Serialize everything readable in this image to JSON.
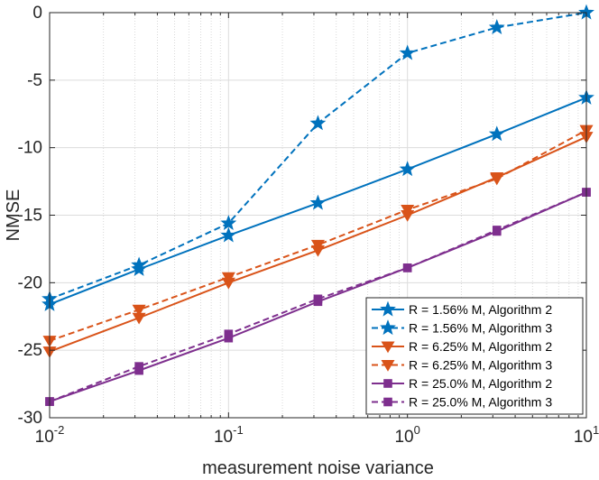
{
  "chart_data": {
    "type": "line",
    "title": "",
    "xlabel": "measurement noise variance",
    "ylabel": "NMSE",
    "xscale": "log",
    "xlim": [
      0.01,
      10
    ],
    "ylim": [
      -30,
      0
    ],
    "grid": true,
    "legend_position": "bottom-right",
    "x": [
      0.01,
      0.0316,
      0.1,
      0.316,
      1,
      3.16,
      10
    ],
    "x_ticks": [
      {
        "value": 0.01,
        "base": "10",
        "exp": "-2"
      },
      {
        "value": 0.1,
        "base": "10",
        "exp": "-1"
      },
      {
        "value": 1,
        "base": "10",
        "exp": "0"
      },
      {
        "value": 10,
        "base": "10",
        "exp": "1"
      }
    ],
    "y_ticks": [
      {
        "value": 0,
        "label": "0"
      },
      {
        "value": -5,
        "label": "-5"
      },
      {
        "value": -10,
        "label": "-10"
      },
      {
        "value": -15,
        "label": "-15"
      },
      {
        "value": -20,
        "label": "-20"
      },
      {
        "value": -25,
        "label": "-25"
      },
      {
        "value": -30,
        "label": "-30"
      }
    ],
    "series": [
      {
        "name": "R = 1.56% M, Algorithm 2",
        "color": "#0072BD",
        "dash": "solid",
        "marker": "star",
        "values": [
          -21.6,
          -19.0,
          -16.5,
          -14.1,
          -11.6,
          -9.0,
          -6.3
        ]
      },
      {
        "name": "R = 1.56% M, Algorithm 3",
        "color": "#0072BD",
        "dash": "dashed",
        "marker": "star",
        "values": [
          -21.2,
          -18.7,
          -15.6,
          -8.2,
          -3.0,
          -1.1,
          0.0
        ]
      },
      {
        "name": "R = 6.25% M, Algorithm 2",
        "color": "#D95319",
        "dash": "solid",
        "marker": "triangle-down",
        "values": [
          -25.1,
          -22.6,
          -20.0,
          -17.6,
          -15.0,
          -12.2,
          -9.2
        ]
      },
      {
        "name": "R = 6.25% M, Algorithm 3",
        "color": "#D95319",
        "dash": "dashed",
        "marker": "triangle-down",
        "values": [
          -24.3,
          -22.0,
          -19.6,
          -17.2,
          -14.6,
          -12.3,
          -8.7
        ]
      },
      {
        "name": "R = 25.0% M, Algorithm 2",
        "color": "#7E2F8E",
        "dash": "solid",
        "marker": "square",
        "values": [
          -28.8,
          -26.5,
          -24.1,
          -21.4,
          -18.9,
          -16.2,
          -13.3
        ]
      },
      {
        "name": "R = 25.0% M, Algorithm 3",
        "color": "#7E2F8E",
        "dash": "dashed",
        "marker": "square",
        "values": [
          -28.8,
          -26.2,
          -23.8,
          -21.2,
          -18.9,
          -16.1,
          -13.3
        ]
      }
    ]
  }
}
